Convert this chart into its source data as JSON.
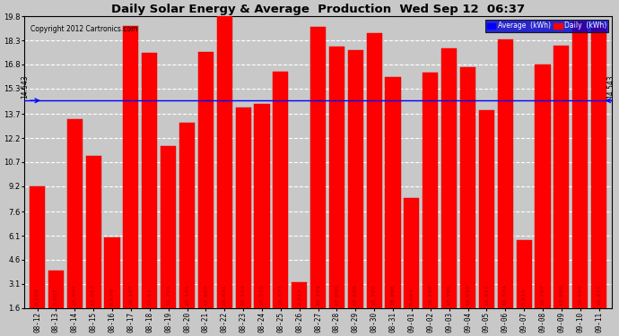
{
  "title": "Daily Solar Energy & Average  Production  Wed Sep 12  06:37",
  "copyright": "Copyright 2012 Cartronics.com",
  "average_value": 14.543,
  "bar_color": "#ff0000",
  "average_line_color": "#0000ff",
  "background_color": "#c8c8c8",
  "categories": [
    "08-12",
    "08-13",
    "08-14",
    "08-15",
    "08-16",
    "08-17",
    "08-18",
    "08-19",
    "08-20",
    "08-21",
    "08-22",
    "08-23",
    "08-24",
    "08-25",
    "08-26",
    "08-27",
    "08-28",
    "08-29",
    "08-30",
    "08-31",
    "09-01",
    "09-02",
    "09-03",
    "09-04",
    "09-05",
    "09-06",
    "09-07",
    "09-08",
    "09-09",
    "09-10",
    "09-11"
  ],
  "values": [
    9.185,
    3.907,
    13.404,
    11.062,
    5.979,
    19.187,
    17.51,
    11.701,
    13.181,
    17.607,
    19.831,
    14.114,
    14.318,
    16.373,
    3.213,
    19.161,
    17.899,
    17.688,
    18.768,
    15.996,
    8.484,
    16.268,
    17.789,
    16.639,
    13.915,
    18.374,
    5.811,
    16.797,
    17.989,
    19.494,
    19.275
  ],
  "yticks": [
    1.6,
    3.1,
    4.6,
    6.1,
    7.6,
    9.2,
    10.7,
    12.2,
    13.7,
    15.3,
    16.8,
    18.3,
    19.8
  ],
  "ylim": [
    1.6,
    19.8
  ],
  "ymin": 1.6,
  "legend_avg_label": "Average  (kWh)",
  "legend_daily_label": "Daily  (kWh)"
}
